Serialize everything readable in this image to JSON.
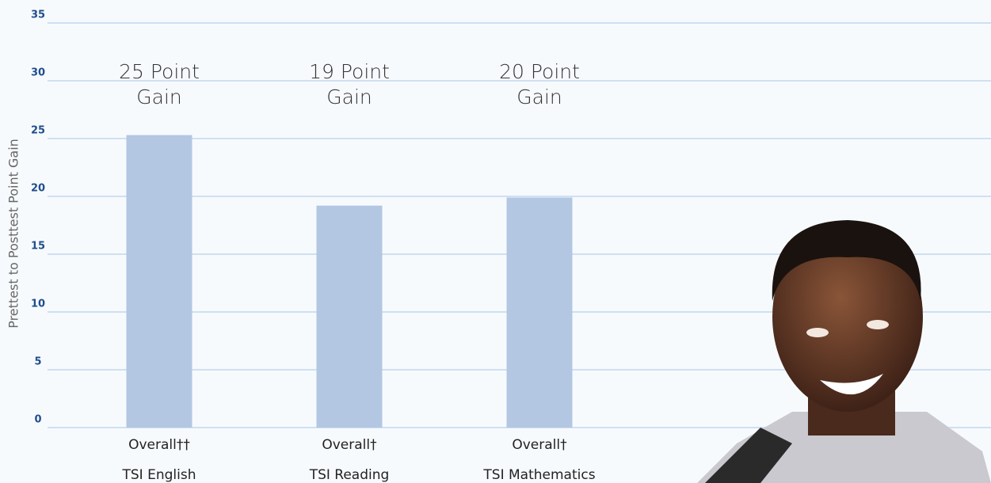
{
  "chart_data": {
    "type": "bar",
    "y_label": "Prettest to Posttest Point Gain",
    "categories": [
      "TSI English",
      "TSI Reading",
      "TSI Mathematics"
    ],
    "subgroups": [
      "Overall††",
      "Overall†",
      "Overall†"
    ],
    "values": [
      25.3,
      19.2,
      19.9
    ],
    "value_labels": [
      "25 Point Gain",
      "19 Point Gain",
      "20 Point Gain"
    ],
    "color": "#b3c6e2",
    "ylim": [
      0,
      35
    ],
    "yticks": [
      0,
      5,
      10,
      15,
      20,
      25,
      30,
      35
    ],
    "grid": true
  }
}
